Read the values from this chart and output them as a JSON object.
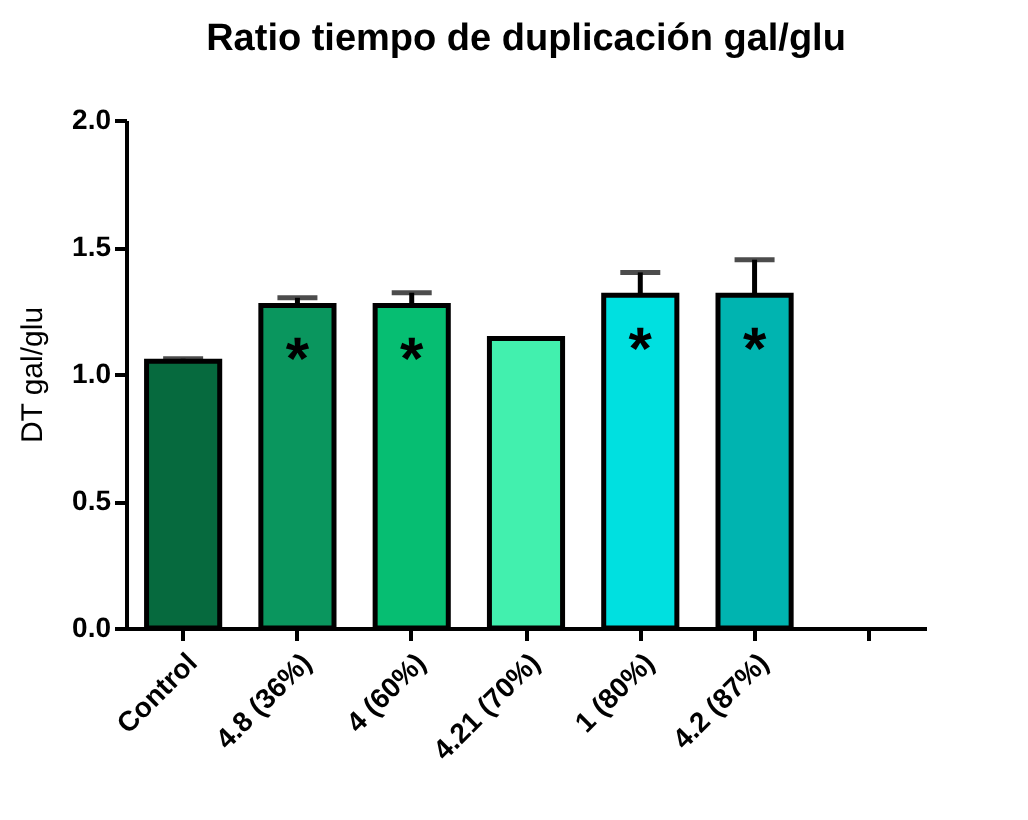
{
  "chart_data": {
    "type": "bar",
    "title": "Ratio tiempo de duplicación gal/glu",
    "ylabel": "DT gal/glu",
    "categories": [
      "Control",
      "4.8 (36%)",
      "4 (60%)",
      "4.21 (70%)",
      "1 (80%)",
      "4.2 (87%)",
      null
    ],
    "values": [
      1.05,
      1.27,
      1.27,
      1.14,
      1.31,
      1.31,
      null
    ],
    "colors": [
      "#066a3e",
      "#0a965e",
      "#06be72",
      "#42f0ae",
      "#00e0e0",
      "#00b4b0",
      "#000000"
    ],
    "errors": [
      [
        1.05,
        1.06
      ],
      [
        1.27,
        1.3
      ],
      [
        1.27,
        1.32
      ],
      null,
      [
        1.31,
        1.4
      ],
      [
        1.31,
        1.45
      ],
      null
    ],
    "ylim": [
      0,
      2.0
    ],
    "yticks": [
      {
        "value": 0,
        "label": "0.0"
      },
      {
        "value": 0.5,
        "label": "0.5"
      },
      {
        "value": 1,
        "label": "1.0"
      },
      {
        "value": 1.5,
        "label": "1.5"
      },
      {
        "value": 2,
        "label": "2.0"
      }
    ],
    "annotations": [
      {
        "text": "*",
        "x": "4.8 (36%)",
        "y": 1.27
      },
      {
        "text": "*",
        "x": "4 (60%)",
        "y": 1.27
      },
      {
        "text": "*",
        "x": "1 (80%)",
        "y": 1.31
      },
      {
        "text": "*",
        "x": "4.2 (87%)",
        "y": 1.31
      }
    ]
  }
}
